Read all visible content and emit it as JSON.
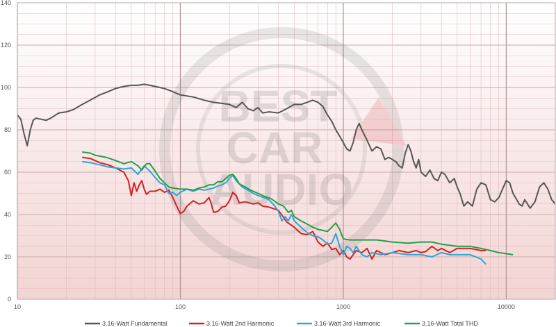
{
  "chart_data": {
    "type": "line",
    "title": "",
    "xlabel": "",
    "ylabel": "",
    "x_scale": "log",
    "xlim": [
      10,
      20000
    ],
    "ylim": [
      0,
      140
    ],
    "x_ticks": [
      10,
      100,
      1000,
      10000
    ],
    "x_tick_labels": [
      "10",
      "100",
      "1000",
      "10000"
    ],
    "y_ticks": [
      0,
      20,
      40,
      60,
      80,
      100,
      120,
      140
    ],
    "y_tick_labels": [
      "0",
      "20",
      "40",
      "60",
      "80",
      "100",
      "120",
      "140"
    ],
    "grid": true,
    "legend_position": "bottom",
    "background": {
      "plot_gradient": [
        "#ffffff",
        "#f3d3d3"
      ],
      "grid_color": "#dcbcbc",
      "watermark": "BEST CAR AUDIO"
    },
    "series": [
      {
        "name": "3.16-Watt Fundamental",
        "color": "#555555",
        "points": [
          [
            10,
            87
          ],
          [
            10.5,
            85
          ],
          [
            11,
            78
          ],
          [
            11.5,
            72.5
          ],
          [
            12,
            80
          ],
          [
            12.5,
            84.5
          ],
          [
            13,
            85.5
          ],
          [
            14,
            85
          ],
          [
            15,
            84.5
          ],
          [
            16,
            85.5
          ],
          [
            18,
            88
          ],
          [
            20,
            88.5
          ],
          [
            22,
            89.5
          ],
          [
            25,
            92
          ],
          [
            28,
            94
          ],
          [
            32,
            96.5
          ],
          [
            36,
            98
          ],
          [
            40,
            99.5
          ],
          [
            45,
            100.5
          ],
          [
            50,
            101
          ],
          [
            55,
            101
          ],
          [
            60,
            101.5
          ],
          [
            65,
            101
          ],
          [
            70,
            100.5
          ],
          [
            80,
            99.5
          ],
          [
            90,
            98
          ],
          [
            100,
            96.5
          ],
          [
            120,
            95.5
          ],
          [
            140,
            94
          ],
          [
            160,
            93
          ],
          [
            180,
            92.5
          ],
          [
            200,
            92
          ],
          [
            220,
            90.5
          ],
          [
            240,
            93
          ],
          [
            260,
            90
          ],
          [
            280,
            89
          ],
          [
            300,
            90.5
          ],
          [
            320,
            88
          ],
          [
            350,
            88.5
          ],
          [
            400,
            88
          ],
          [
            450,
            90
          ],
          [
            500,
            92
          ],
          [
            550,
            92
          ],
          [
            600,
            93
          ],
          [
            650,
            94
          ],
          [
            700,
            93
          ],
          [
            750,
            91
          ],
          [
            800,
            87
          ],
          [
            850,
            84
          ],
          [
            900,
            80
          ],
          [
            950,
            77
          ],
          [
            1000,
            74
          ],
          [
            1050,
            71
          ],
          [
            1100,
            70
          ],
          [
            1150,
            74
          ],
          [
            1200,
            80
          ],
          [
            1250,
            83
          ],
          [
            1300,
            80
          ],
          [
            1400,
            75
          ],
          [
            1500,
            70
          ],
          [
            1600,
            72
          ],
          [
            1700,
            71
          ],
          [
            1800,
            66
          ],
          [
            1900,
            67
          ],
          [
            2000,
            66
          ],
          [
            2100,
            65
          ],
          [
            2200,
            63
          ],
          [
            2300,
            62
          ],
          [
            2400,
            69
          ],
          [
            2500,
            73
          ],
          [
            2600,
            70
          ],
          [
            2700,
            65
          ],
          [
            2800,
            62
          ],
          [
            2900,
            66
          ],
          [
            3000,
            60
          ],
          [
            3200,
            58
          ],
          [
            3400,
            61
          ],
          [
            3600,
            57
          ],
          [
            3800,
            56
          ],
          [
            4000,
            60
          ],
          [
            4200,
            59
          ],
          [
            4500,
            55
          ],
          [
            4800,
            57
          ],
          [
            5000,
            53
          ],
          [
            5200,
            50
          ],
          [
            5500,
            44
          ],
          [
            5800,
            46
          ],
          [
            6200,
            44
          ],
          [
            6600,
            52
          ],
          [
            7000,
            55
          ],
          [
            7500,
            54
          ],
          [
            8000,
            47
          ],
          [
            8500,
            46
          ],
          [
            9000,
            48
          ],
          [
            10000,
            56
          ],
          [
            10500,
            55
          ],
          [
            11000,
            50
          ],
          [
            12000,
            45
          ],
          [
            12500,
            44
          ],
          [
            13000,
            47
          ],
          [
            14000,
            43
          ],
          [
            15000,
            46
          ],
          [
            16000,
            53
          ],
          [
            17000,
            55
          ],
          [
            18000,
            52
          ],
          [
            19000,
            47
          ],
          [
            20000,
            45
          ]
        ]
      },
      {
        "name": "3.16-Watt 2nd Harmonic",
        "color": "#d52020",
        "points": [
          [
            25,
            67
          ],
          [
            28,
            66.5
          ],
          [
            32,
            64.5
          ],
          [
            36,
            63.5
          ],
          [
            40,
            62
          ],
          [
            45,
            60
          ],
          [
            48,
            56
          ],
          [
            50,
            49
          ],
          [
            52,
            55
          ],
          [
            54,
            51
          ],
          [
            56,
            54
          ],
          [
            58,
            56
          ],
          [
            60,
            52
          ],
          [
            62,
            49.5
          ],
          [
            65,
            51
          ],
          [
            70,
            51
          ],
          [
            75,
            52
          ],
          [
            80,
            50.5
          ],
          [
            85,
            51.5
          ],
          [
            90,
            48
          ],
          [
            95,
            44
          ],
          [
            100,
            40.5
          ],
          [
            105,
            41.5
          ],
          [
            110,
            44
          ],
          [
            120,
            46.5
          ],
          [
            130,
            45
          ],
          [
            140,
            45.5
          ],
          [
            150,
            48
          ],
          [
            155,
            45
          ],
          [
            160,
            41
          ],
          [
            170,
            41.5
          ],
          [
            180,
            43.5
          ],
          [
            190,
            44
          ],
          [
            200,
            46.5
          ],
          [
            210,
            50.5
          ],
          [
            220,
            49
          ],
          [
            230,
            45.5
          ],
          [
            250,
            46
          ],
          [
            280,
            45
          ],
          [
            300,
            45.5
          ],
          [
            320,
            44
          ],
          [
            350,
            43.5
          ],
          [
            400,
            42
          ],
          [
            450,
            36.5
          ],
          [
            500,
            34
          ],
          [
            550,
            31
          ],
          [
            600,
            30.5
          ],
          [
            650,
            32
          ],
          [
            700,
            27
          ],
          [
            750,
            25
          ],
          [
            800,
            26.5
          ],
          [
            850,
            23.5
          ],
          [
            900,
            24
          ],
          [
            950,
            21
          ],
          [
            1000,
            23
          ],
          [
            1050,
            20
          ],
          [
            1100,
            19
          ],
          [
            1200,
            23
          ],
          [
            1300,
            22
          ],
          [
            1400,
            24
          ],
          [
            1500,
            19
          ],
          [
            1600,
            23
          ],
          [
            1700,
            22
          ],
          [
            1800,
            21
          ],
          [
            2000,
            22
          ],
          [
            2200,
            23
          ],
          [
            2500,
            22
          ],
          [
            2800,
            23
          ],
          [
            3000,
            22
          ],
          [
            3200,
            22.5
          ],
          [
            3500,
            25
          ],
          [
            3800,
            23
          ],
          [
            4000,
            24
          ],
          [
            4500,
            22
          ],
          [
            5000,
            24
          ],
          [
            6000,
            24
          ],
          [
            7000,
            23
          ],
          [
            7500,
            23
          ]
        ]
      },
      {
        "name": "3.16-Watt 3rd Harmonic",
        "color": "#2aa7d8",
        "points": [
          [
            25,
            65
          ],
          [
            28,
            64.5
          ],
          [
            32,
            63.5
          ],
          [
            36,
            62.5
          ],
          [
            40,
            62
          ],
          [
            45,
            61.5
          ],
          [
            50,
            62
          ],
          [
            55,
            59
          ],
          [
            60,
            63
          ],
          [
            65,
            60.5
          ],
          [
            70,
            57.5
          ],
          [
            75,
            55
          ],
          [
            80,
            54
          ],
          [
            85,
            50
          ],
          [
            90,
            50.5
          ],
          [
            95,
            49
          ],
          [
            100,
            50.5
          ],
          [
            110,
            52
          ],
          [
            120,
            51
          ],
          [
            130,
            52
          ],
          [
            140,
            51.5
          ],
          [
            150,
            52
          ],
          [
            160,
            52.5
          ],
          [
            170,
            53.5
          ],
          [
            180,
            54
          ],
          [
            190,
            55
          ],
          [
            200,
            57
          ],
          [
            210,
            58.5
          ],
          [
            220,
            56
          ],
          [
            240,
            53
          ],
          [
            260,
            51.5
          ],
          [
            280,
            50
          ],
          [
            300,
            49
          ],
          [
            350,
            47
          ],
          [
            380,
            44
          ],
          [
            400,
            41.5
          ],
          [
            420,
            37
          ],
          [
            440,
            39
          ],
          [
            460,
            37
          ],
          [
            480,
            40
          ],
          [
            500,
            37
          ],
          [
            550,
            34
          ],
          [
            600,
            31.5
          ],
          [
            650,
            30
          ],
          [
            700,
            29.5
          ],
          [
            750,
            28
          ],
          [
            800,
            26
          ],
          [
            850,
            26.5
          ],
          [
            900,
            31
          ],
          [
            950,
            25
          ],
          [
            1000,
            21
          ],
          [
            1050,
            25
          ],
          [
            1100,
            24
          ],
          [
            1150,
            22
          ],
          [
            1200,
            25
          ],
          [
            1300,
            21
          ],
          [
            1400,
            20
          ],
          [
            1500,
            22
          ],
          [
            1700,
            21
          ],
          [
            2000,
            22
          ],
          [
            2500,
            21
          ],
          [
            3000,
            21
          ],
          [
            3500,
            20
          ],
          [
            4000,
            22
          ],
          [
            4500,
            21
          ],
          [
            5000,
            21
          ],
          [
            6000,
            21
          ],
          [
            6500,
            20
          ],
          [
            7000,
            19
          ],
          [
            7500,
            16.5
          ]
        ]
      },
      {
        "name": "3.16-Watt Total THD",
        "color": "#22a04a",
        "points": [
          [
            25,
            69.5
          ],
          [
            28,
            69
          ],
          [
            30,
            68
          ],
          [
            35,
            67
          ],
          [
            40,
            65.5
          ],
          [
            45,
            64
          ],
          [
            50,
            65
          ],
          [
            55,
            63
          ],
          [
            58,
            61
          ],
          [
            62,
            64
          ],
          [
            65,
            64
          ],
          [
            70,
            60.5
          ],
          [
            75,
            57
          ],
          [
            80,
            55
          ],
          [
            85,
            53
          ],
          [
            90,
            52.5
          ],
          [
            100,
            52
          ],
          [
            110,
            52
          ],
          [
            120,
            51.5
          ],
          [
            130,
            52.5
          ],
          [
            140,
            53
          ],
          [
            150,
            54
          ],
          [
            160,
            54
          ],
          [
            170,
            55.5
          ],
          [
            180,
            55.5
          ],
          [
            190,
            57
          ],
          [
            200,
            58.5
          ],
          [
            210,
            59
          ],
          [
            220,
            57
          ],
          [
            230,
            54.5
          ],
          [
            250,
            53
          ],
          [
            270,
            51.5
          ],
          [
            300,
            50
          ],
          [
            330,
            48.5
          ],
          [
            360,
            47.5
          ],
          [
            400,
            45
          ],
          [
            430,
            44
          ],
          [
            460,
            41
          ],
          [
            480,
            42
          ],
          [
            500,
            39
          ],
          [
            550,
            37
          ],
          [
            600,
            35.5
          ],
          [
            650,
            34
          ],
          [
            700,
            33
          ],
          [
            800,
            32
          ],
          [
            850,
            34
          ],
          [
            900,
            36
          ],
          [
            950,
            33
          ],
          [
            1000,
            28.5
          ],
          [
            1100,
            28
          ],
          [
            1200,
            28
          ],
          [
            1400,
            28
          ],
          [
            1600,
            28
          ],
          [
            1800,
            27.5
          ],
          [
            2000,
            27
          ],
          [
            2500,
            26.5
          ],
          [
            3000,
            27
          ],
          [
            3500,
            27
          ],
          [
            4000,
            26
          ],
          [
            5000,
            25
          ],
          [
            6000,
            25
          ],
          [
            7000,
            24
          ],
          [
            8000,
            23
          ],
          [
            9000,
            22
          ],
          [
            10000,
            21.5
          ],
          [
            11000,
            21
          ]
        ]
      }
    ]
  }
}
